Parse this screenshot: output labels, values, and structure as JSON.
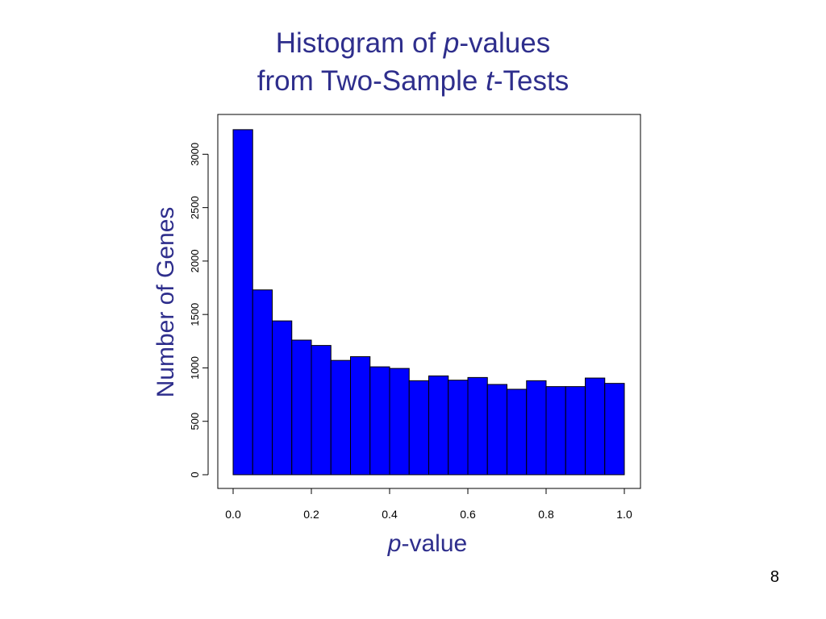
{
  "slide": {
    "title_line1_italic": "p",
    "title_line1_rest": "-values",
    "title_line1_prefix": "Histogram of ",
    "title_line2_prefix": "from Two-Sample ",
    "title_line2_italic": "t",
    "title_line2_rest": "-Tests",
    "page_number": "8"
  },
  "chart_data": {
    "type": "bar",
    "title": "Histogram of p-values from Two-Sample t-Tests",
    "xlabel": "p-value",
    "xlabel_italic": "p",
    "xlabel_rest": "-value",
    "ylabel": "Number of Genes",
    "bin_edges": [
      0.0,
      0.05,
      0.1,
      0.15,
      0.2,
      0.25,
      0.3,
      0.35,
      0.4,
      0.45,
      0.5,
      0.55,
      0.6,
      0.65,
      0.7,
      0.75,
      0.8,
      0.85,
      0.9,
      0.95,
      1.0
    ],
    "values": [
      3230,
      1730,
      1440,
      1260,
      1210,
      1070,
      1105,
      1010,
      995,
      880,
      925,
      885,
      910,
      845,
      800,
      880,
      825,
      825,
      905,
      855
    ],
    "xlim": [
      0.0,
      1.0
    ],
    "ylim": [
      0,
      3300
    ],
    "xticks": [
      "0.0",
      "0.2",
      "0.4",
      "0.6",
      "0.8",
      "1.0"
    ],
    "yticks": [
      "0",
      "500",
      "1000",
      "1500",
      "2000",
      "2500",
      "3000"
    ],
    "bar_color": "#0000ff",
    "bar_edge_color": "#000000",
    "label_color": "#2e2e8c",
    "grid": false
  }
}
